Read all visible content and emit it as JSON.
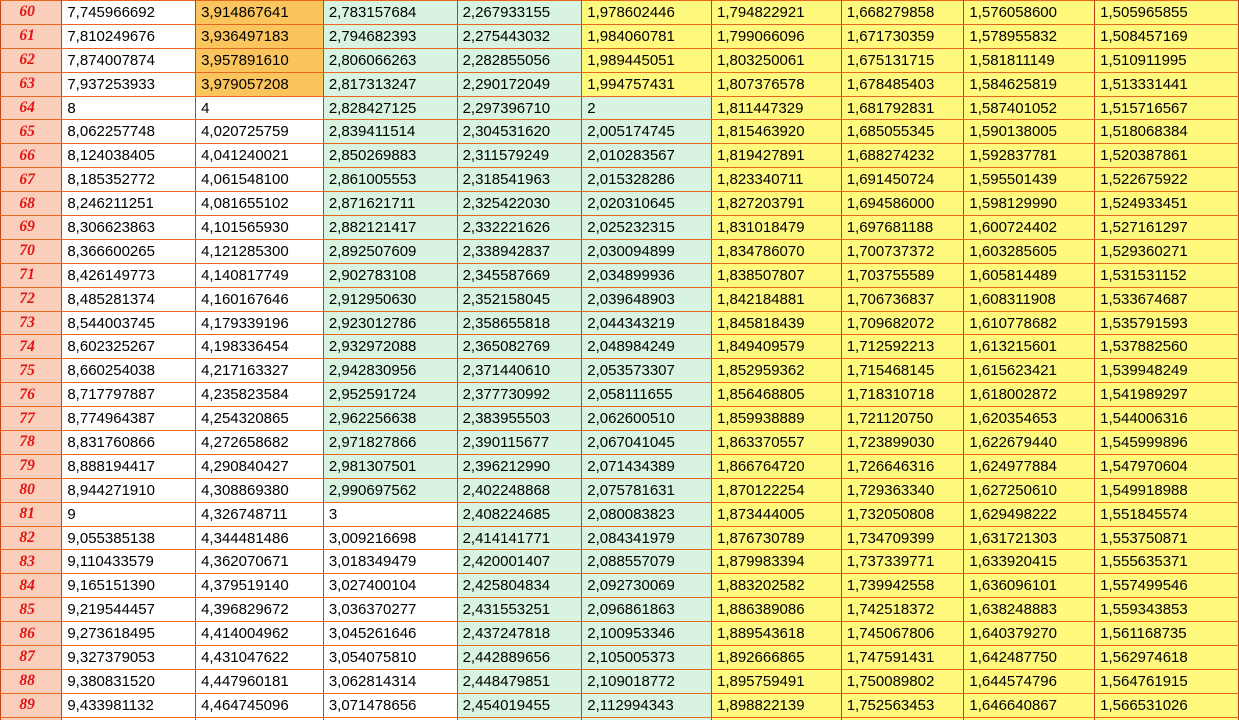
{
  "table": {
    "row_number_color": "#E01414",
    "text_color": "#000000",
    "grid_color_horizontal": "#E8671F",
    "grid_color_vertical": "#BC4315",
    "colors": {
      "P": "#F9CFBB",
      "O": "#FBC55E",
      "M": "#D8F4E1",
      "Y": "#FFF97D",
      "W": "#FFFFFF"
    },
    "rows": [
      {
        "n": "60",
        "bg": "PWOMMYYYYY",
        "v": [
          "7,745966692",
          "3,914867641",
          "2,783157684",
          "2,267933155",
          "1,978602446",
          "1,794822921",
          "1,668279858",
          "1,576058600",
          "1,505965855"
        ]
      },
      {
        "n": "61",
        "bg": "PWOMMYYYYY",
        "v": [
          "7,810249676",
          "3,936497183",
          "2,794682393",
          "2,275443032",
          "1,984060781",
          "1,799066096",
          "1,671730359",
          "1,578955832",
          "1,508457169"
        ]
      },
      {
        "n": "62",
        "bg": "PWOMMYYYYY",
        "v": [
          "7,874007874",
          "3,957891610",
          "2,806066263",
          "2,282855056",
          "1,989445051",
          "1,803250061",
          "1,675131715",
          "1,581811149",
          "1,510911995"
        ]
      },
      {
        "n": "63",
        "bg": "PWOMMYYYYY",
        "v": [
          "7,937253933",
          "3,979057208",
          "2,817313247",
          "2,290172049",
          "1,994757431",
          "1,807376578",
          "1,678485403",
          "1,584625819",
          "1,513331441"
        ]
      },
      {
        "n": "64",
        "bg": "PWWMMMYYYY",
        "v": [
          "8",
          "4",
          "2,828427125",
          "2,297396710",
          "2",
          "1,811447329",
          "1,681792831",
          "1,587401052",
          "1,515716567"
        ]
      },
      {
        "n": "65",
        "bg": "PWWMMMYYYY",
        "v": [
          "8,062257748",
          "4,020725759",
          "2,839411514",
          "2,304531620",
          "2,005174745",
          "1,815463920",
          "1,685055345",
          "1,590138005",
          "1,518068384"
        ]
      },
      {
        "n": "66",
        "bg": "PWWMMMYYYY",
        "v": [
          "8,124038405",
          "4,041240021",
          "2,850269883",
          "2,311579249",
          "2,010283567",
          "1,819427891",
          "1,688274232",
          "1,592837781",
          "1,520387861"
        ]
      },
      {
        "n": "67",
        "bg": "PWWMMMYYYY",
        "v": [
          "8,185352772",
          "4,061548100",
          "2,861005553",
          "2,318541963",
          "2,015328286",
          "1,823340711",
          "1,691450724",
          "1,595501439",
          "1,522675922"
        ]
      },
      {
        "n": "68",
        "bg": "PWWMMMYYYY",
        "v": [
          "8,246211251",
          "4,081655102",
          "2,871621711",
          "2,325422030",
          "2,020310645",
          "1,827203791",
          "1,694586000",
          "1,598129990",
          "1,524933451"
        ]
      },
      {
        "n": "69",
        "bg": "PWWMMMYYYY",
        "v": [
          "8,306623863",
          "4,101565930",
          "2,882121417",
          "2,332221626",
          "2,025232315",
          "1,831018479",
          "1,697681188",
          "1,600724402",
          "1,527161297"
        ]
      },
      {
        "n": "70",
        "bg": "PWWMMMYYYY",
        "v": [
          "8,366600265",
          "4,121285300",
          "2,892507609",
          "2,338942837",
          "2,030094899",
          "1,834786070",
          "1,700737372",
          "1,603285605",
          "1,529360271"
        ]
      },
      {
        "n": "71",
        "bg": "PWWMMMYYYY",
        "v": [
          "8,426149773",
          "4,140817749",
          "2,902783108",
          "2,345587669",
          "2,034899936",
          "1,838507807",
          "1,703755589",
          "1,605814489",
          "1,531531152"
        ]
      },
      {
        "n": "72",
        "bg": "PWWMMMYYYY",
        "v": [
          "8,485281374",
          "4,160167646",
          "2,912950630",
          "2,352158045",
          "2,039648903",
          "1,842184881",
          "1,706736837",
          "1,608311908",
          "1,533674687"
        ]
      },
      {
        "n": "73",
        "bg": "PWWMMMYYYY",
        "v": [
          "8,544003745",
          "4,179339196",
          "2,923012786",
          "2,358655818",
          "2,044343219",
          "1,845818439",
          "1,709682072",
          "1,610778682",
          "1,535791593"
        ]
      },
      {
        "n": "74",
        "bg": "PWWMMMYYYY",
        "v": [
          "8,602325267",
          "4,198336454",
          "2,932972088",
          "2,365082769",
          "2,048984249",
          "1,849409579",
          "1,712592213",
          "1,613215601",
          "1,537882560"
        ]
      },
      {
        "n": "75",
        "bg": "PWWMMMYYYY",
        "v": [
          "8,660254038",
          "4,217163327",
          "2,942830956",
          "2,371440610",
          "2,053573307",
          "1,852959362",
          "1,715468145",
          "1,615623421",
          "1,539948249"
        ]
      },
      {
        "n": "76",
        "bg": "PWWMMMYYYY",
        "v": [
          "8,717797887",
          "4,235823584",
          "2,952591724",
          "2,377730992",
          "2,058111655",
          "1,856468805",
          "1,718310718",
          "1,618002872",
          "1,541989297"
        ]
      },
      {
        "n": "77",
        "bg": "PWWMMMYYYY",
        "v": [
          "8,774964387",
          "4,254320865",
          "2,962256638",
          "2,383955503",
          "2,062600510",
          "1,859938889",
          "1,721120750",
          "1,620354653",
          "1,544006316"
        ]
      },
      {
        "n": "78",
        "bg": "PWWMMMYYYY",
        "v": [
          "8,831760866",
          "4,272658682",
          "2,971827866",
          "2,390115677",
          "2,067041045",
          "1,863370557",
          "1,723899030",
          "1,622679440",
          "1,545999896"
        ]
      },
      {
        "n": "79",
        "bg": "PWWMMMYYYY",
        "v": [
          "8,888194417",
          "4,290840427",
          "2,981307501",
          "2,396212990",
          "2,071434389",
          "1,866764720",
          "1,726646316",
          "1,624977884",
          "1,547970604"
        ]
      },
      {
        "n": "80",
        "bg": "PWWMMMYYYY",
        "v": [
          "8,944271910",
          "4,308869380",
          "2,990697562",
          "2,402248868",
          "2,075781631",
          "1,870122254",
          "1,729363340",
          "1,627250610",
          "1,549918988"
        ]
      },
      {
        "n": "81",
        "bg": "PWWWMMYYYY",
        "v": [
          "9",
          "4,326748711",
          "3",
          "2,408224685",
          "2,080083823",
          "1,873444005",
          "1,732050808",
          "1,629498222",
          "1,551845574"
        ]
      },
      {
        "n": "82",
        "bg": "PWWWMMYYYY",
        "v": [
          "9,055385138",
          "4,344481486",
          "3,009216698",
          "2,414141771",
          "2,084341979",
          "1,876730789",
          "1,734709399",
          "1,631721303",
          "1,553750871"
        ]
      },
      {
        "n": "83",
        "bg": "PWWWMMYYYY",
        "v": [
          "9,110433579",
          "4,362070671",
          "3,018349479",
          "2,420001407",
          "2,088557079",
          "1,879983394",
          "1,737339771",
          "1,633920415",
          "1,555635371"
        ]
      },
      {
        "n": "84",
        "bg": "PWWWMMYYYY",
        "v": [
          "9,165151390",
          "4,379519140",
          "3,027400104",
          "2,425804834",
          "2,092730069",
          "1,883202582",
          "1,739942558",
          "1,636096101",
          "1,557499546"
        ]
      },
      {
        "n": "85",
        "bg": "PWWWMMYYYY",
        "v": [
          "9,219544457",
          "4,396829672",
          "3,036370277",
          "2,431553251",
          "2,096861863",
          "1,886389086",
          "1,742518372",
          "1,638248883",
          "1,559343853"
        ]
      },
      {
        "n": "86",
        "bg": "PWWWMMYYYY",
        "v": [
          "9,273618495",
          "4,414004962",
          "3,045261646",
          "2,437247818",
          "2,100953346",
          "1,889543618",
          "1,745067806",
          "1,640379270",
          "1,561168735"
        ]
      },
      {
        "n": "87",
        "bg": "PWWWMMYYYY",
        "v": [
          "9,327379053",
          "4,431047622",
          "3,054075810",
          "2,442889656",
          "2,105005373",
          "1,892666865",
          "1,747591431",
          "1,642487750",
          "1,562974618"
        ]
      },
      {
        "n": "88",
        "bg": "PWWWMMYYYY",
        "v": [
          "9,380831520",
          "4,447960181",
          "3,062814314",
          "2,448479851",
          "2,109018772",
          "1,895759491",
          "1,750089802",
          "1,644574796",
          "1,564761915"
        ]
      },
      {
        "n": "89",
        "bg": "PWWWMMYYYY",
        "v": [
          "9,433981132",
          "4,464745096",
          "3,071478656",
          "2,454019455",
          "2,112994343",
          "1,898822139",
          "1,752563453",
          "1,646640867",
          "1,566531026"
        ]
      }
    ],
    "partial_next_row_bg": "PWWWMMYYYY"
  }
}
